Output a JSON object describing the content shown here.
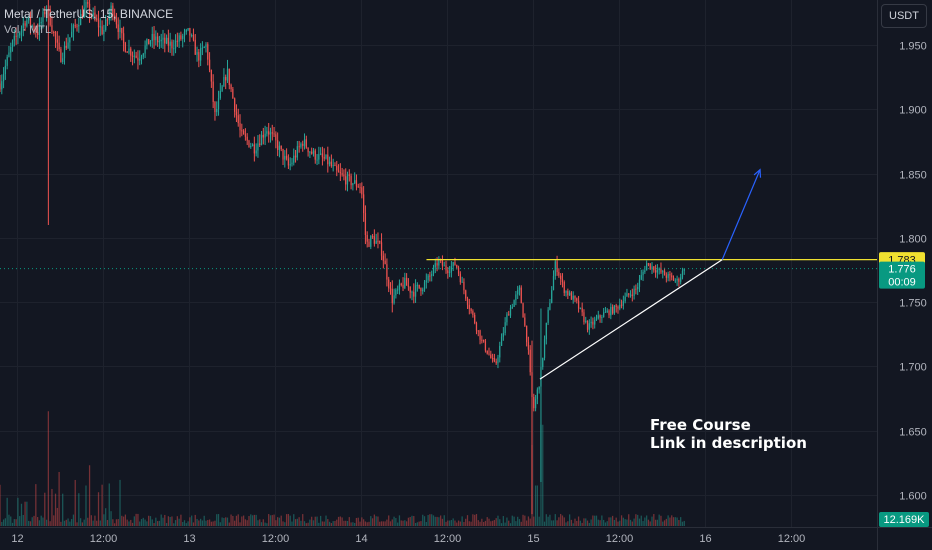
{
  "legend": {
    "symbol_line": "Metal / TetherUS, 15, BINANCE",
    "volume_label": "Vol · MTL"
  },
  "currency_button": "USDT",
  "promo": {
    "line1": "Free Course",
    "line2": "Link in description"
  },
  "colors": {
    "background": "#131722",
    "grid": "#1e222d",
    "up": "#26a69a",
    "down": "#ef5350",
    "resistance": "#f0e130",
    "trendline": "#ffffff",
    "arrow": "#2962ff",
    "price_marker": "#089981",
    "label_text": "#b2b5be"
  },
  "chart_data": {
    "type": "candlestick",
    "symbol": "Metal / TetherUS",
    "interval": "15",
    "exchange": "BINANCE",
    "y_axis": {
      "ticks": [
        "1.950",
        "1.900",
        "1.850",
        "1.800",
        "1.750",
        "1.700",
        "1.650",
        "1.600"
      ],
      "tick_values": [
        1.95,
        1.9,
        1.85,
        1.8,
        1.75,
        1.7,
        1.65,
        1.6
      ],
      "range": [
        1.575,
        1.985
      ]
    },
    "x_axis": {
      "ticks": [
        "12",
        "12:00",
        "13",
        "12:00",
        "14",
        "12:00",
        "15",
        "12:00",
        "16",
        "12:00"
      ],
      "tick_times": [
        12.0,
        12.5,
        13.0,
        13.5,
        14.0,
        14.5,
        15.0,
        15.5,
        16.0,
        16.5
      ],
      "range": [
        11.9,
        17.0
      ]
    },
    "price_path": [
      [
        11.9,
        1.92
      ],
      [
        11.97,
        1.95
      ],
      [
        12.05,
        1.97
      ],
      [
        12.12,
        1.96
      ],
      [
        12.17,
        1.98
      ],
      [
        12.25,
        1.94
      ],
      [
        12.32,
        1.96
      ],
      [
        12.4,
        1.98
      ],
      [
        12.5,
        1.96
      ],
      [
        12.55,
        1.98
      ],
      [
        12.62,
        1.95
      ],
      [
        12.7,
        1.94
      ],
      [
        12.78,
        1.955
      ],
      [
        12.9,
        1.95
      ],
      [
        13.0,
        1.96
      ],
      [
        13.05,
        1.94
      ],
      [
        13.1,
        1.95
      ],
      [
        13.15,
        1.895
      ],
      [
        13.22,
        1.93
      ],
      [
        13.3,
        1.88
      ],
      [
        13.38,
        1.87
      ],
      [
        13.45,
        1.885
      ],
      [
        13.5,
        1.875
      ],
      [
        13.58,
        1.855
      ],
      [
        13.66,
        1.875
      ],
      [
        13.72,
        1.865
      ],
      [
        13.8,
        1.86
      ],
      [
        13.86,
        1.85
      ],
      [
        13.92,
        1.845
      ],
      [
        14.0,
        1.84
      ],
      [
        14.03,
        1.795
      ],
      [
        14.07,
        1.8
      ],
      [
        14.12,
        1.79
      ],
      [
        14.18,
        1.752
      ],
      [
        14.25,
        1.765
      ],
      [
        14.3,
        1.758
      ],
      [
        14.38,
        1.765
      ],
      [
        14.45,
        1.782
      ],
      [
        14.5,
        1.775
      ],
      [
        14.55,
        1.78
      ],
      [
        14.62,
        1.75
      ],
      [
        14.7,
        1.72
      ],
      [
        14.78,
        1.7
      ],
      [
        14.85,
        1.74
      ],
      [
        14.92,
        1.76
      ],
      [
        14.97,
        1.715
      ],
      [
        15.0,
        1.665
      ],
      [
        15.04,
        1.69
      ],
      [
        15.08,
        1.735
      ],
      [
        15.13,
        1.78
      ],
      [
        15.18,
        1.76
      ],
      [
        15.25,
        1.75
      ],
      [
        15.32,
        1.73
      ],
      [
        15.4,
        1.74
      ],
      [
        15.48,
        1.745
      ],
      [
        15.55,
        1.755
      ],
      [
        15.6,
        1.76
      ],
      [
        15.66,
        1.78
      ],
      [
        15.72,
        1.775
      ],
      [
        15.78,
        1.77
      ],
      [
        15.84,
        1.766
      ],
      [
        15.88,
        1.776
      ]
    ],
    "wicks": [
      {
        "t": 12.18,
        "high": 1.985,
        "low": 1.81
      },
      {
        "t": 14.99,
        "high": 1.72,
        "low": 1.585
      },
      {
        "t": 15.05,
        "high": 1.745,
        "low": 1.61
      }
    ],
    "resistance": 1.783,
    "last_price": 1.776,
    "price_labels": {
      "resistance": "1.783",
      "last": "1.776",
      "countdown": "00:09"
    },
    "trendline": {
      "start": [
        15.04,
        1.69
      ],
      "end": [
        16.1,
        1.783
      ]
    },
    "arrow": {
      "start": [
        16.1,
        1.783
      ],
      "end": [
        16.32,
        1.853
      ]
    },
    "volume": {
      "last_label": "12.169K",
      "peaks": [
        {
          "t": 12.18,
          "rel": 0.85
        },
        {
          "t": 12.2,
          "rel": 0.55
        },
        {
          "t": 12.24,
          "rel": 0.4
        },
        {
          "t": 12.4,
          "rel": 0.3
        },
        {
          "t": 12.42,
          "rel": 0.45
        },
        {
          "t": 12.47,
          "rel": 0.25
        },
        {
          "t": 12.05,
          "rel": 0.18
        },
        {
          "t": 14.99,
          "rel": 0.6
        },
        {
          "t": 15.05,
          "rel": 0.75
        },
        {
          "t": 15.02,
          "rel": 0.3
        }
      ]
    }
  }
}
